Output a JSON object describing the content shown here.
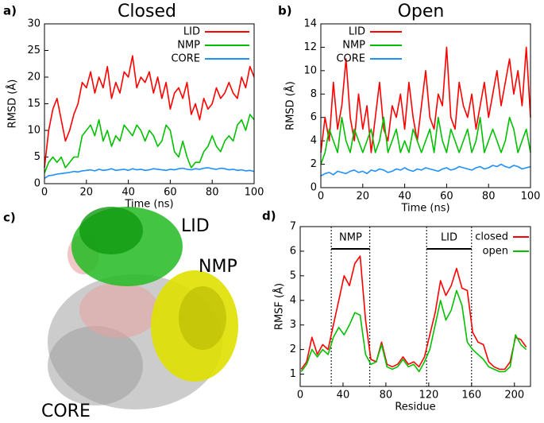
{
  "chart_data": [
    {
      "type": "line",
      "panel_label": "a)",
      "title": "Closed",
      "x_label": "Time (ns)",
      "y_label": "RMSD (Å)",
      "xlim": [
        0,
        100
      ],
      "xticks": [
        0,
        20,
        40,
        60,
        80,
        100
      ],
      "ylim": [
        0,
        30
      ],
      "yticks": [
        0,
        5,
        10,
        15,
        20,
        25,
        30
      ],
      "x": [
        0,
        2,
        4,
        6,
        8,
        10,
        12,
        14,
        16,
        18,
        20,
        22,
        24,
        26,
        28,
        30,
        32,
        34,
        36,
        38,
        40,
        42,
        44,
        46,
        48,
        50,
        52,
        54,
        56,
        58,
        60,
        62,
        64,
        66,
        68,
        70,
        72,
        74,
        76,
        78,
        80,
        82,
        84,
        86,
        88,
        90,
        92,
        94,
        96,
        98,
        100
      ],
      "series": [
        {
          "name": "LID",
          "color": "#ff0000",
          "values": [
            3,
            10,
            14,
            16,
            12,
            8,
            10,
            13,
            15,
            19,
            18,
            21,
            17,
            20,
            18,
            22,
            16,
            19,
            17,
            21,
            20,
            24,
            18,
            20,
            19,
            21,
            17,
            20,
            16,
            19,
            14,
            17,
            18,
            16,
            19,
            13,
            15,
            12,
            16,
            14,
            15,
            18,
            16,
            17,
            19,
            17,
            16,
            20,
            18,
            22,
            20
          ]
        },
        {
          "name": "NMP",
          "color": "#00c000",
          "values": [
            2,
            4,
            5,
            4,
            5,
            3,
            4,
            5,
            5,
            9,
            10,
            11,
            9,
            12,
            8,
            10,
            7,
            9,
            8,
            11,
            10,
            9,
            11,
            10,
            8,
            10,
            9,
            7,
            8,
            11,
            10,
            6,
            5,
            8,
            5,
            3,
            4,
            4,
            6,
            7,
            9,
            7,
            6,
            8,
            9,
            8,
            11,
            12,
            10,
            13,
            12
          ]
        },
        {
          "name": "CORE",
          "color": "#1e90ff",
          "values": [
            1.0,
            1.5,
            1.6,
            1.8,
            1.9,
            2.0,
            2.1,
            2.3,
            2.2,
            2.4,
            2.5,
            2.6,
            2.4,
            2.7,
            2.5,
            2.6,
            2.8,
            2.5,
            2.6,
            2.7,
            2.5,
            2.8,
            2.6,
            2.7,
            2.5,
            2.6,
            2.8,
            2.7,
            2.6,
            2.5,
            2.7,
            2.6,
            2.8,
            2.9,
            2.7,
            2.6,
            2.8,
            2.7,
            2.9,
            3.0,
            2.8,
            2.7,
            2.9,
            2.8,
            2.6,
            2.7,
            2.5,
            2.6,
            2.4,
            2.5,
            2.3
          ]
        }
      ]
    },
    {
      "type": "line",
      "panel_label": "b)",
      "title": "Open",
      "x_label": "Time (ns)",
      "y_label": "RMSD (Å)",
      "xlim": [
        0,
        100
      ],
      "xticks": [
        0,
        20,
        40,
        60,
        80,
        100
      ],
      "ylim": [
        0,
        14
      ],
      "yticks": [
        0,
        2,
        4,
        6,
        8,
        10,
        12,
        14
      ],
      "x": [
        0,
        2,
        4,
        6,
        8,
        10,
        12,
        14,
        16,
        18,
        20,
        22,
        24,
        26,
        28,
        30,
        32,
        34,
        36,
        38,
        40,
        42,
        44,
        46,
        48,
        50,
        52,
        54,
        56,
        58,
        60,
        62,
        64,
        66,
        68,
        70,
        72,
        74,
        76,
        78,
        80,
        82,
        84,
        86,
        88,
        90,
        92,
        94,
        96,
        98,
        100
      ],
      "series": [
        {
          "name": "LID",
          "color": "#ff0000",
          "values": [
            3,
            6,
            4,
            9,
            5,
            7,
            11,
            6,
            4,
            8,
            5,
            7,
            3,
            6,
            9,
            5,
            4,
            7,
            6,
            8,
            5,
            9,
            6,
            4,
            7,
            10,
            6,
            5,
            8,
            7,
            12,
            6,
            5,
            9,
            7,
            6,
            8,
            5,
            7,
            9,
            6,
            8,
            10,
            7,
            9,
            11,
            8,
            10,
            7,
            12,
            6
          ]
        },
        {
          "name": "NMP",
          "color": "#00c000",
          "values": [
            2,
            3,
            5,
            4,
            3,
            6,
            4,
            3,
            5,
            4,
            3,
            4,
            5,
            3,
            4,
            6,
            3,
            4,
            5,
            3,
            4,
            3,
            5,
            4,
            3,
            4,
            5,
            3,
            6,
            4,
            3,
            5,
            4,
            3,
            4,
            5,
            3,
            4,
            6,
            3,
            4,
            5,
            4,
            3,
            4,
            6,
            5,
            3,
            4,
            5,
            3
          ]
        },
        {
          "name": "CORE",
          "color": "#1e90ff",
          "values": [
            1.0,
            1.2,
            1.3,
            1.1,
            1.4,
            1.3,
            1.2,
            1.4,
            1.5,
            1.3,
            1.4,
            1.2,
            1.5,
            1.4,
            1.6,
            1.5,
            1.3,
            1.4,
            1.6,
            1.5,
            1.7,
            1.5,
            1.4,
            1.6,
            1.5,
            1.7,
            1.6,
            1.5,
            1.4,
            1.6,
            1.7,
            1.5,
            1.6,
            1.8,
            1.7,
            1.6,
            1.5,
            1.7,
            1.8,
            1.6,
            1.7,
            1.9,
            1.8,
            2.0,
            1.8,
            1.7,
            1.9,
            1.8,
            1.6,
            1.7,
            1.8
          ]
        }
      ]
    },
    {
      "type": "line",
      "panel_label": "d)",
      "x_label": "Residue",
      "y_label": "RMSF (Å)",
      "xlim": [
        0,
        215
      ],
      "xticks": [
        0,
        40,
        80,
        120,
        160,
        200
      ],
      "ylim": [
        0.5,
        7
      ],
      "yticks": [
        1,
        2,
        3,
        4,
        5,
        6,
        7
      ],
      "regions": [
        {
          "label": "NMP",
          "start": 29,
          "end": 65
        },
        {
          "label": "LID",
          "start": 118,
          "end": 160
        }
      ],
      "x": [
        1,
        6,
        11,
        16,
        21,
        26,
        31,
        36,
        41,
        46,
        51,
        56,
        61,
        66,
        71,
        76,
        81,
        86,
        91,
        96,
        101,
        106,
        111,
        116,
        121,
        126,
        131,
        136,
        141,
        146,
        151,
        156,
        161,
        166,
        171,
        176,
        181,
        186,
        191,
        196,
        201,
        206,
        211
      ],
      "series": [
        {
          "name": "closed",
          "color": "#ff0000",
          "values": [
            1.2,
            1.5,
            2.5,
            1.8,
            2.2,
            2.0,
            3.0,
            4.0,
            5.0,
            4.6,
            5.5,
            5.8,
            3.2,
            1.6,
            1.5,
            2.3,
            1.4,
            1.3,
            1.4,
            1.7,
            1.4,
            1.5,
            1.3,
            1.7,
            2.6,
            3.5,
            4.8,
            4.2,
            4.6,
            5.3,
            4.5,
            4.4,
            2.7,
            2.3,
            2.2,
            1.5,
            1.3,
            1.2,
            1.2,
            1.5,
            2.5,
            2.4,
            2.1
          ]
        },
        {
          "name": "open",
          "color": "#00c000",
          "values": [
            1.1,
            1.4,
            2.0,
            1.7,
            2.0,
            1.8,
            2.5,
            2.9,
            2.6,
            3.0,
            3.5,
            3.4,
            1.8,
            1.4,
            1.5,
            2.2,
            1.3,
            1.2,
            1.3,
            1.6,
            1.3,
            1.4,
            1.1,
            1.5,
            2.0,
            3.0,
            4.0,
            3.2,
            3.6,
            4.4,
            3.8,
            2.3,
            2.0,
            1.8,
            1.6,
            1.3,
            1.2,
            1.1,
            1.1,
            1.3,
            2.6,
            2.2,
            2.0
          ]
        }
      ]
    }
  ],
  "panel_c": {
    "panel_label": "c)",
    "labels": [
      "LID",
      "NMP",
      "CORE"
    ]
  }
}
